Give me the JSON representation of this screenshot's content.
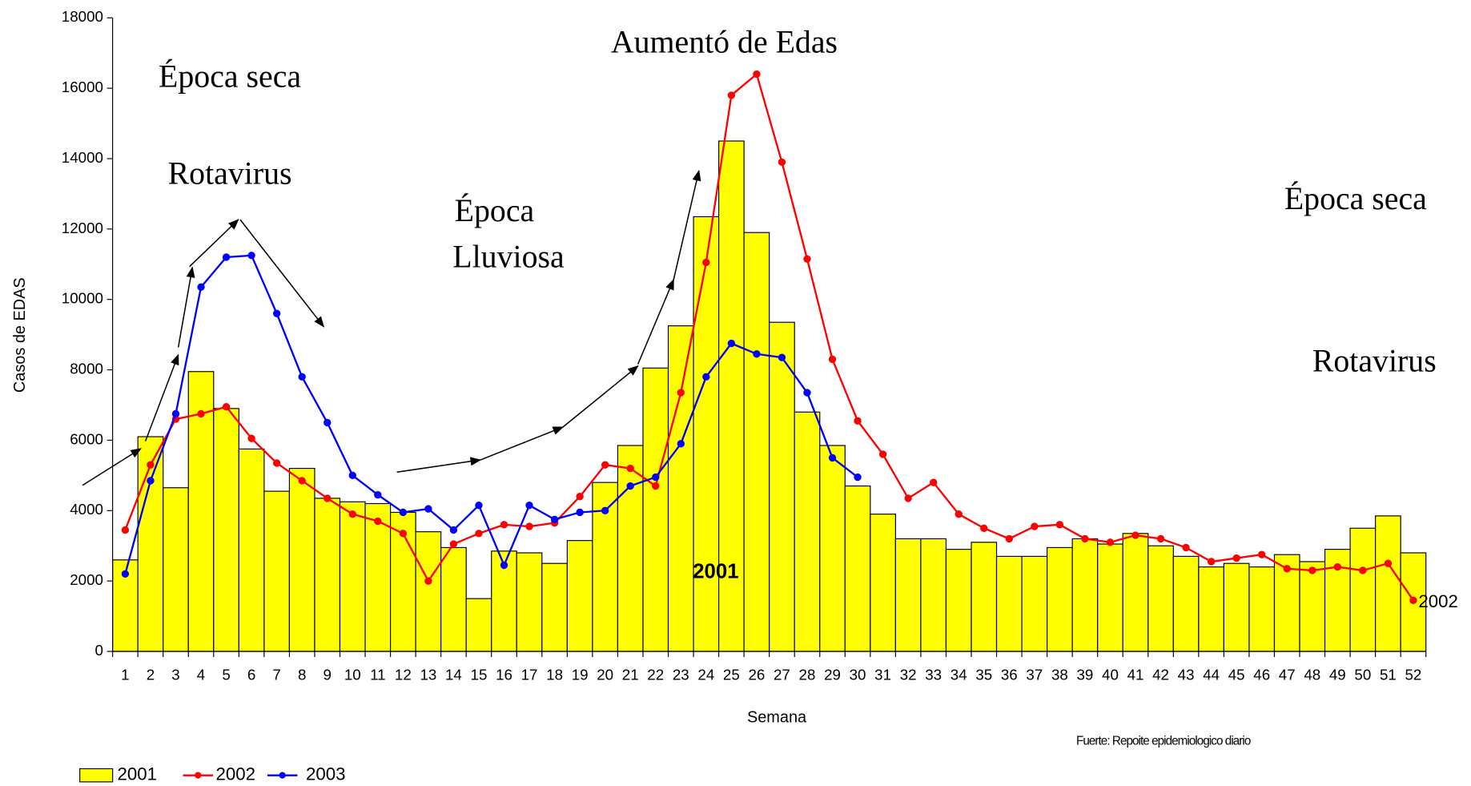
{
  "chart_data": {
    "type": "bar_line",
    "x_label": "Semana",
    "y_label": "Casos de EDAS",
    "source": "Fuerte: Repoite epidemiologico diario",
    "annotations": [
      "Época seca",
      "Rotavirus",
      "Época",
      "Lluviosa",
      "Aumentó de Edas",
      "Época seca",
      "Rotavirus"
    ],
    "categories": [
      1,
      2,
      3,
      4,
      5,
      6,
      7,
      8,
      9,
      10,
      11,
      12,
      13,
      14,
      15,
      16,
      17,
      18,
      19,
      20,
      21,
      22,
      23,
      24,
      25,
      26,
      27,
      28,
      29,
      30,
      31,
      32,
      33,
      34,
      35,
      36,
      37,
      38,
      39,
      40,
      41,
      42,
      43,
      44,
      45,
      46,
      47,
      48,
      49,
      50,
      51,
      52
    ],
    "series": [
      {
        "name": "2001",
        "kind": "bar",
        "color": "#ffff00",
        "values": [
          2600,
          6100,
          4650,
          7950,
          6900,
          5750,
          4550,
          5200,
          4350,
          4250,
          4200,
          3950,
          3400,
          2950,
          1500,
          2850,
          2800,
          2500,
          3150,
          4800,
          5850,
          8050,
          9250,
          12350,
          14500,
          11900,
          9350,
          6800,
          5850,
          4700,
          3900,
          3200,
          3200,
          2900,
          3100,
          2700,
          2700,
          2950,
          3200,
          3050,
          3350,
          3000,
          2700,
          2400,
          2500,
          2400,
          2750,
          2550,
          2900,
          3500,
          3850,
          2800
        ]
      },
      {
        "name": "2002",
        "kind": "line",
        "color": "#ff0000",
        "values": [
          3450,
          5300,
          6600,
          6750,
          6950,
          6050,
          5350,
          4850,
          4350,
          3900,
          3700,
          3350,
          2000,
          3050,
          3350,
          3600,
          3550,
          3650,
          4400,
          5300,
          5200,
          4700,
          7350,
          11050,
          15800,
          16400,
          13900,
          11150,
          8300,
          6550,
          5600,
          4350,
          4800,
          3900,
          3500,
          3200,
          3550,
          3600,
          3200,
          3100,
          3300,
          3200,
          2950,
          2550,
          2650,
          2750,
          2350,
          2300,
          2400,
          2300,
          2500,
          1450
        ]
      },
      {
        "name": "2003",
        "kind": "line",
        "color": "#0000ff",
        "values": [
          2200,
          4850,
          6750,
          10350,
          11200,
          11250,
          9600,
          7800,
          6500,
          5000,
          4450,
          3950,
          4050,
          3450,
          4150,
          2450,
          4150,
          3750,
          3950,
          4000,
          4700,
          4950,
          5900,
          7800,
          8750,
          8450,
          8350,
          7350,
          5500,
          4950,
          null,
          null,
          null,
          null,
          null,
          null,
          null,
          null,
          null,
          null,
          null,
          null,
          null,
          null,
          null,
          null,
          null,
          null,
          null,
          null,
          null,
          null
        ]
      }
    ],
    "ylim": [
      0,
      18000
    ],
    "yticks": [
      0,
      2000,
      4000,
      6000,
      8000,
      10000,
      12000,
      14000,
      16000,
      18000
    ]
  }
}
